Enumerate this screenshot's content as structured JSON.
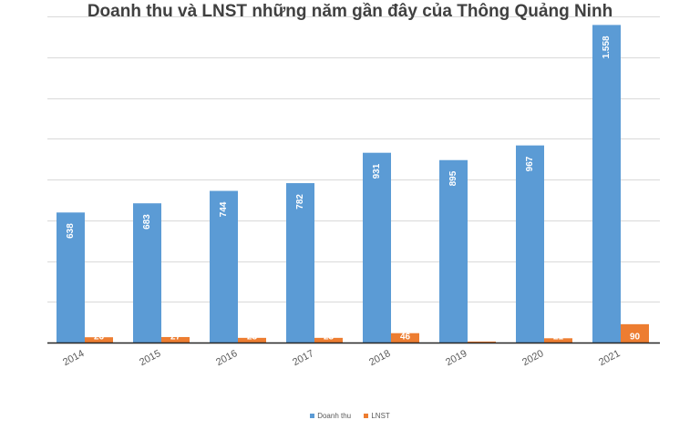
{
  "chart_data": {
    "type": "bar",
    "title": "Doanh thu và LNST những năm gần đây của Thông Quảng Ninh",
    "categories": [
      "2014",
      "2015",
      "2016",
      "2017",
      "2018",
      "2019",
      "2020",
      "2021"
    ],
    "series": [
      {
        "name": "Doanh thu",
        "color": "#5b9bd5",
        "values": [
          638,
          683,
          744,
          782,
          931,
          895,
          967,
          1558
        ],
        "labels": [
          "638",
          "683",
          "744",
          "782",
          "931",
          "895",
          "967",
          "1.558"
        ]
      },
      {
        "name": "LNST",
        "color": "#ed7d31",
        "values": [
          26,
          27,
          23,
          23,
          46,
          5,
          21,
          90
        ],
        "labels": [
          "26",
          "27",
          "23",
          "23",
          "46",
          "5",
          "21",
          "90"
        ]
      }
    ],
    "ylim": [
      0,
      1600
    ],
    "grid": true,
    "legend": "bottom"
  }
}
